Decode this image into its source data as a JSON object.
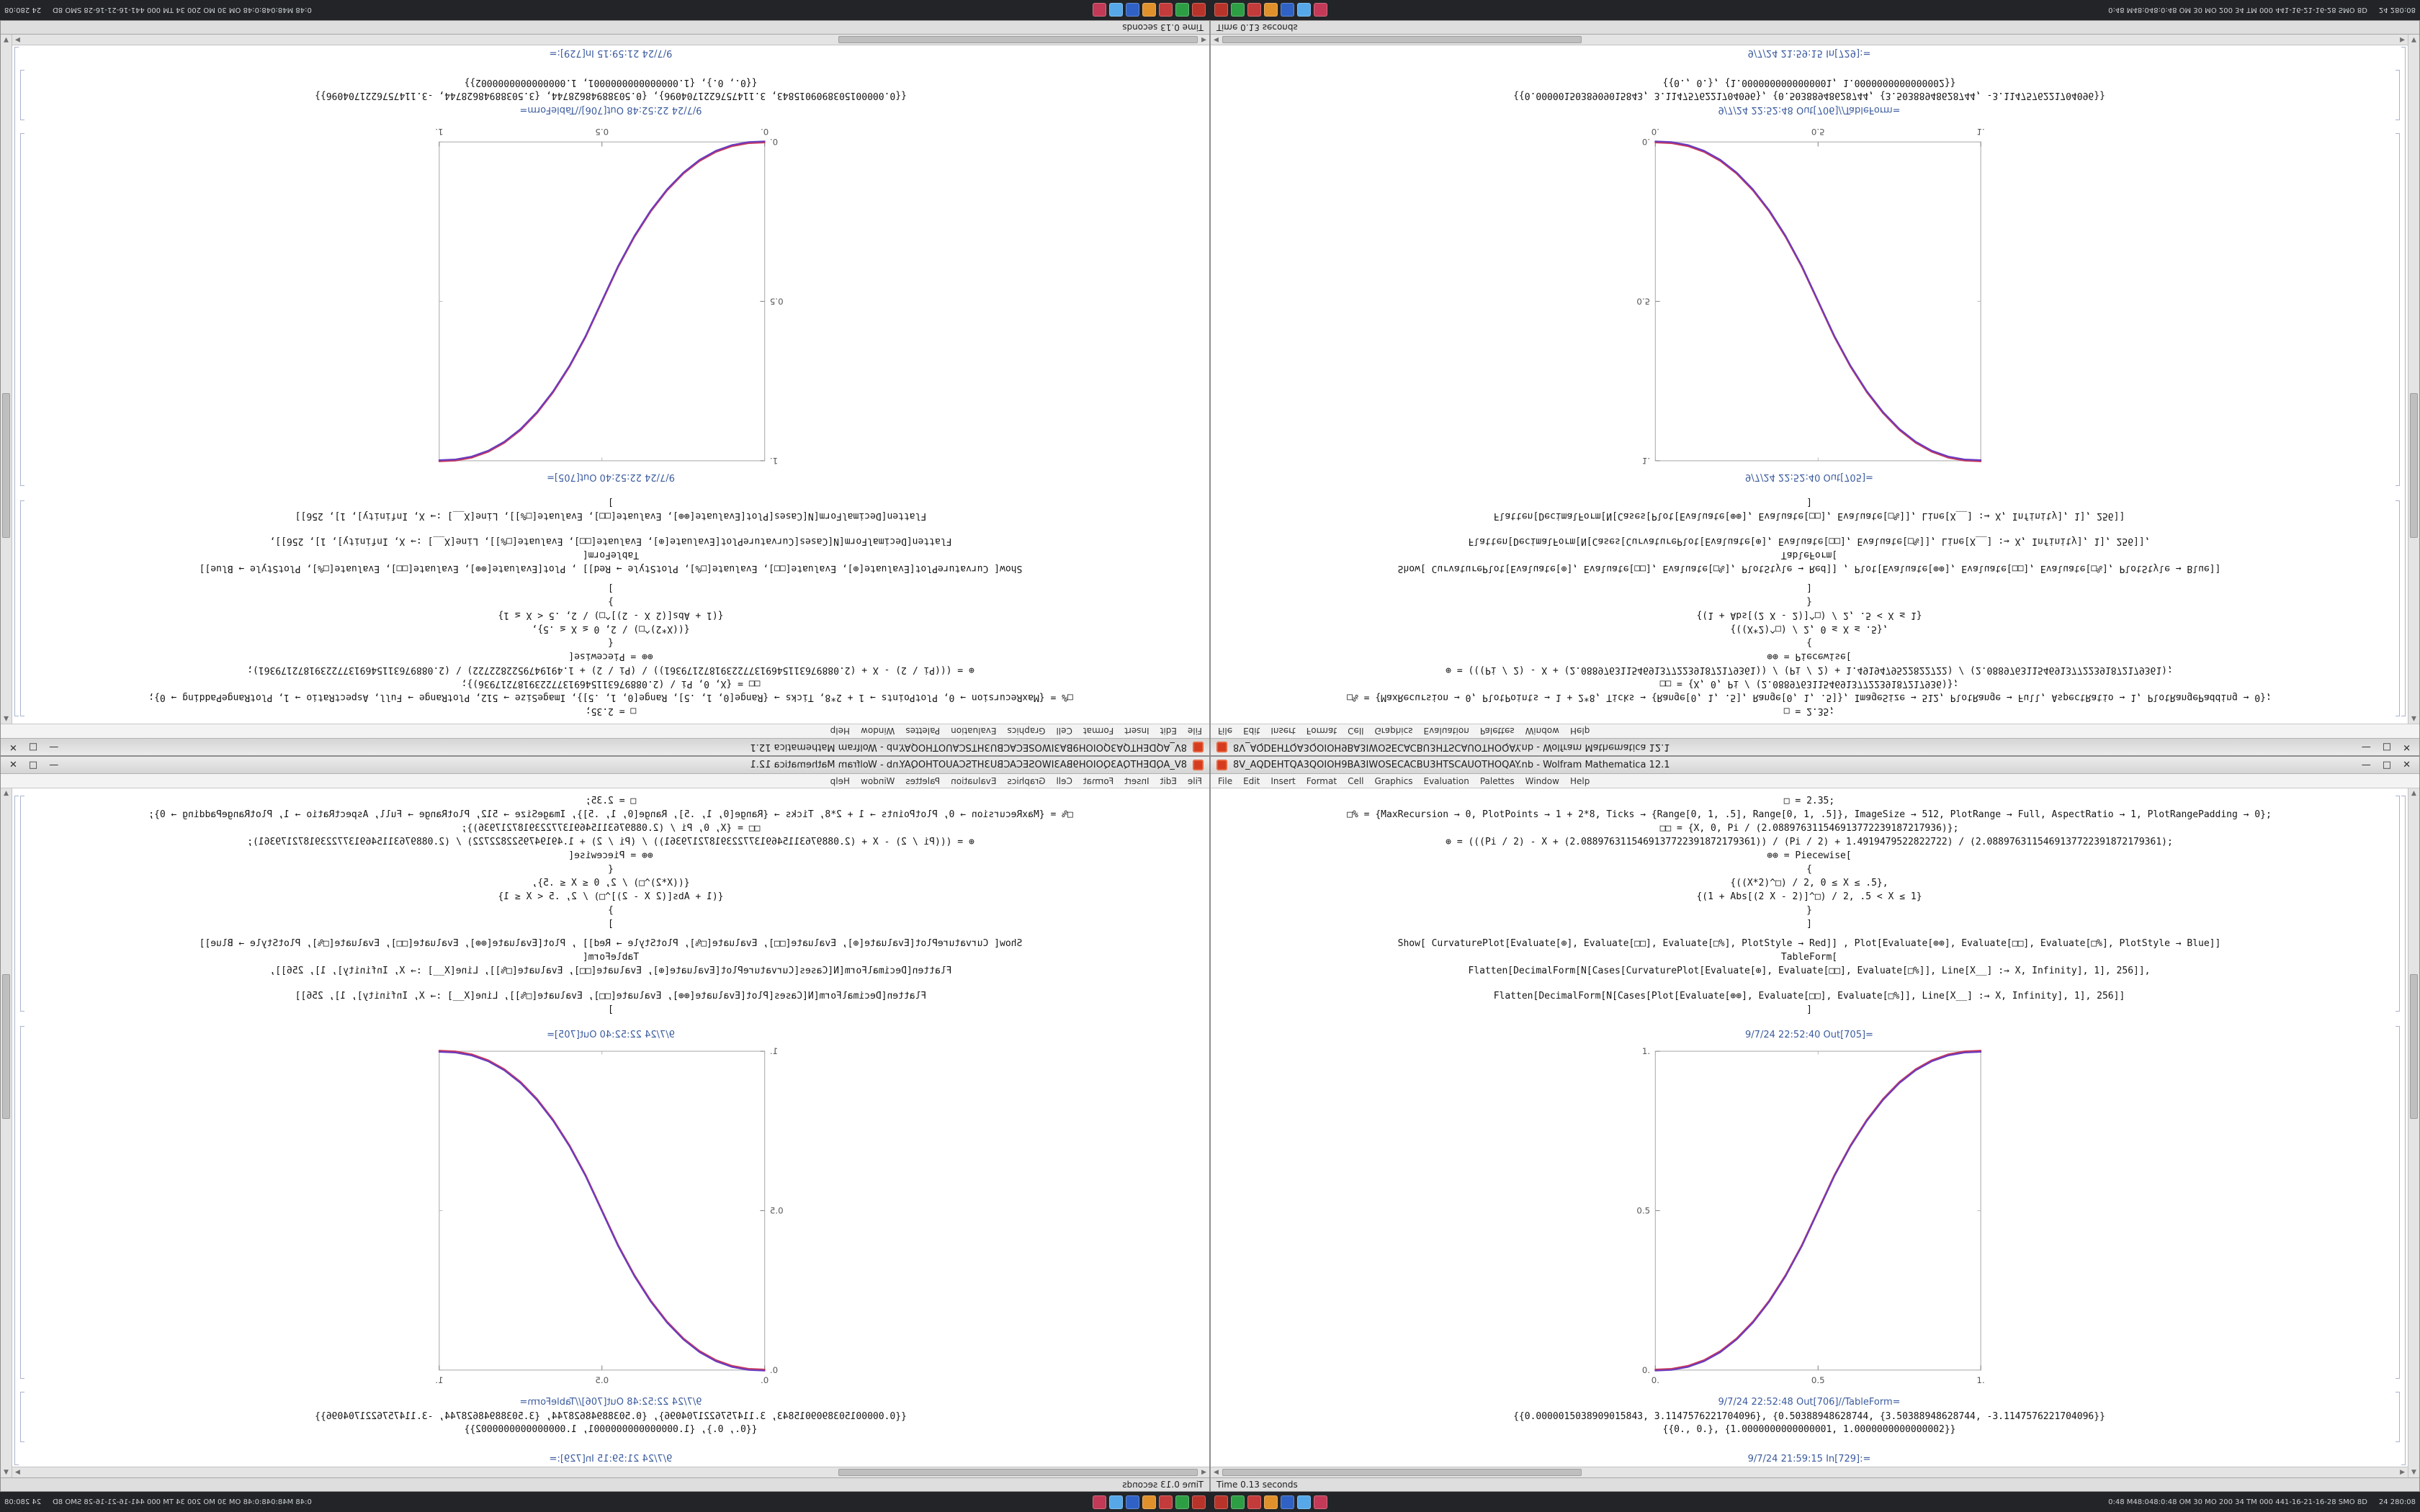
{
  "window": {
    "title": "8V_AQDEHTQA3QOIOH9BA3IWOSECACBU3HTSCAUOTHOQAY.nb - Wolfram Mathematica 12.1",
    "buttons": {
      "minimize": "—",
      "maximize": "□",
      "close": "✕"
    },
    "menu": [
      "File",
      "Edit",
      "Insert",
      "Format",
      "Cell",
      "Graphics",
      "Evaluation",
      "Palettes",
      "Window",
      "Help"
    ]
  },
  "notebook": {
    "code_lines": [
      "□ = 2.35;",
      "□% = {MaxRecursion → 0, PlotPoints → 1 + 2*8, Ticks → {Range[0, 1, .5], Range[0, 1, .5]}, ImageSize → 512, PlotRange → Full, AspectRatio → 1, PlotRangePadding → 0};",
      "□□ = {X, 0, Pi / (2.088976311546913772239187217936)};",
      "⊕ = (((Pi / 2) - X + (2.0889763115469137722391872179361)) / (Pi / 2) + 1.4919479522822722) / (2.0889763115469137722391872179361);",
      "⊕⊕ = Piecewise[",
      "{",
      "{((X*2)^□) / 2, 0 ≤ X ≤ .5},",
      "{(1 + Abs[(2 X - 2)]^□) / 2, .5 < X ≤ 1}",
      "}",
      "]",
      "Show[ CurvaturePlot[Evaluate[⊕], Evaluate[□□], Evaluate[□%], PlotStyle → Red]] , Plot[Evaluate[⊕⊕], Evaluate[□□], Evaluate[□%], PlotStyle → Blue]]",
      "TableForm[",
      "Flatten[DecimalForm[N[Cases[CurvaturePlot[Evaluate[⊕], Evaluate[□□], Evaluate[□%]], Line[X__] :→ X, Infinity], 1], 256]],",
      "Flatten[DecimalForm[N[Cases[Plot[Evaluate[⊕⊕], Evaluate[□□], Evaluate[□%]], Line[X__] :→ X, Infinity], 1], 256]]",
      "]"
    ],
    "out1_label": "9/7/24 22:52:40 Out[705]=",
    "out2_label": "9/7/24 22:52:48 Out[706]//TableForm=",
    "result_rows": [
      "{{0.0000015038909015843, 3.1147576221704096}, {0.50388948628744, {3.50388948628744, -3.1147576221704096}}",
      "{{0., 0.}, {1.0000000000000001, 1.0000000000000002}}"
    ],
    "in_label": "9/7/24 21:59:15 In[729]:="
  },
  "status": {
    "text": "Time 0.13 seconds"
  },
  "taskbar": {
    "icons": [
      {
        "color": "#b8342a"
      },
      {
        "color": "#2e9e44"
      },
      {
        "color": "#c43b3b"
      },
      {
        "color": "#e0912c"
      },
      {
        "color": "#2f62c4"
      },
      {
        "color": "#57a8e8"
      },
      {
        "color": "#c23a57"
      }
    ],
    "tray_text": "0:48 M48:048:0:48 OM 30 MO 200 34 TM 000 441-16-21-16-28 SMO 8D",
    "tray_right": "24 280:08"
  },
  "icons": {
    "scroll_up": "▲",
    "scroll_down": "▼",
    "scroll_left": "◀",
    "scroll_right": "▶"
  },
  "colors": {
    "curve_red": "#c8385a",
    "curve_blue": "#6a3bbf",
    "frame": "#b4b4b4",
    "tick": "#8a8a8a",
    "tick_label": "#555555",
    "taskbar_bg": "#222427",
    "cell_label": "#3b5b9e"
  },
  "chart_data": {
    "type": "line",
    "title": "",
    "xlabel": "",
    "ylabel": "",
    "xlim": [
      0,
      1
    ],
    "ylim": [
      0,
      1
    ],
    "xticks": [
      "0.",
      "0.5",
      "1."
    ],
    "yticks": [
      "0.",
      "0.5",
      "1."
    ],
    "frame": true,
    "grid": false,
    "legend": "none",
    "x": [
      0,
      0.05,
      0.1,
      0.15,
      0.2,
      0.25,
      0.3,
      0.35,
      0.4,
      0.45,
      0.5,
      0.55,
      0.6,
      0.65,
      0.7,
      0.75,
      0.8,
      0.85,
      0.9,
      0.95,
      1
    ],
    "series": [
      {
        "name": "CurvaturePlot (red)",
        "color": "#c8385a",
        "y": [
          0,
          0.0022,
          0.0114,
          0.0295,
          0.058,
          0.098,
          0.1506,
          0.2163,
          0.296,
          0.3903,
          0.5,
          0.6097,
          0.704,
          0.7837,
          0.8494,
          0.902,
          0.942,
          0.9705,
          0.9886,
          0.9978,
          1
        ]
      },
      {
        "name": "Plot (blue)",
        "color": "#6a3bbf",
        "y": [
          0,
          0.0022,
          0.0114,
          0.0295,
          0.058,
          0.098,
          0.1506,
          0.2163,
          0.296,
          0.3903,
          0.5,
          0.6097,
          0.704,
          0.7837,
          0.8494,
          0.902,
          0.942,
          0.9705,
          0.9886,
          0.9978,
          1
        ]
      }
    ]
  }
}
